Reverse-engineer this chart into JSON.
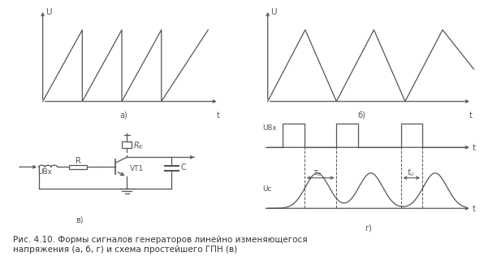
{
  "fig_width": 6.0,
  "fig_height": 3.19,
  "dpi": 100,
  "bg_color": "#ffffff",
  "line_color": "#555555",
  "caption": "Рис. 4.10. Формы сигналов генераторов линейно изменяющегося\nнапряжения (а, б, г) и схема простейшего ГПН (в)",
  "caption_fontsize": 7.5,
  "label_a": "а)",
  "label_b": "б)",
  "label_v": "в)",
  "label_g": "г)"
}
